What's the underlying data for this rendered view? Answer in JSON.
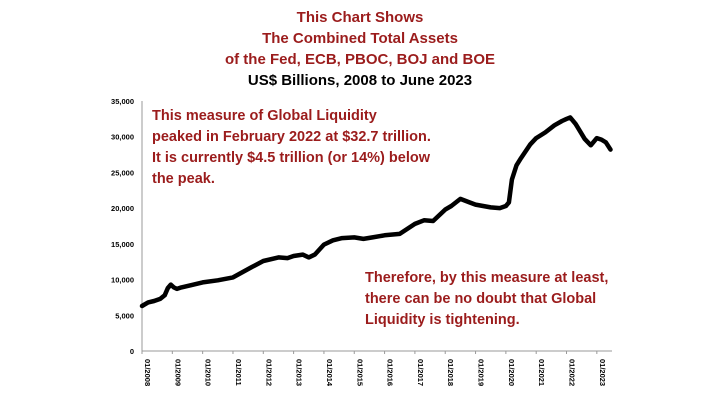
{
  "title_lines": [
    "This Chart Shows",
    "The Combined Total Assets",
    "of the Fed, ECB, PBOC, BOJ and BOE"
  ],
  "subtitle": "US$ Billions, 2008 to June 2023",
  "annotations": {
    "top_left": [
      "This measure of Global Liquidity",
      "peaked in February 2022 at $32.7 trillion.",
      "It is currently $4.5 trillion (or 14%) below",
      "the peak."
    ],
    "bottom_right": [
      "Therefore, by this measure at least,",
      "there can be no doubt that Global",
      "Liquidity is tightening."
    ]
  },
  "colors": {
    "title": "#9b1c1c",
    "annotation": "#9b1c1c",
    "line": "#000000"
  },
  "chart_data": {
    "type": "line",
    "ylim": [
      0,
      35000
    ],
    "yticks": [
      0,
      5000,
      10000,
      15000,
      20000,
      25000,
      30000,
      35000
    ],
    "ytick_labels": [
      "0",
      "5,000",
      "10,000",
      "15,000",
      "20,000",
      "25,000",
      "30,000",
      "35,000"
    ],
    "xtick_labels": [
      "01/2008",
      "01/2009",
      "01/2010",
      "01/2011",
      "01/2012",
      "01/2013",
      "01/2014",
      "01/2015",
      "01/2016",
      "01/2017",
      "01/2018",
      "01/2019",
      "01/2020",
      "01/2021",
      "01/2022",
      "01/2023"
    ],
    "xlim": [
      2008.0,
      2023.5
    ],
    "grid": false,
    "series": [
      {
        "x": [
          2008.0,
          2008.2,
          2008.4,
          2008.6,
          2008.75,
          2008.85,
          2008.95,
          2009.05,
          2009.15,
          2009.3,
          2009.6,
          2010.0,
          2010.5,
          2011.0,
          2011.3,
          2011.6,
          2012.0,
          2012.5,
          2012.8,
          2013.0,
          2013.3,
          2013.5,
          2013.7,
          2014.0,
          2014.3,
          2014.6,
          2015.0,
          2015.3,
          2015.6,
          2016.0,
          2016.5,
          2017.0,
          2017.3,
          2017.6,
          2018.0,
          2018.2,
          2018.5,
          2018.8,
          2019.0,
          2019.5,
          2019.8,
          2020.0,
          2020.1,
          2020.2,
          2020.35,
          2020.5,
          2020.8,
          2021.0,
          2021.3,
          2021.6,
          2021.85,
          2022.0,
          2022.12,
          2022.3,
          2022.6,
          2022.8,
          2023.0,
          2023.15,
          2023.3,
          2023.45
        ],
        "y": [
          6300,
          6800,
          7000,
          7300,
          7800,
          8800,
          9300,
          8900,
          8700,
          8900,
          9200,
          9600,
          9900,
          10300,
          11000,
          11700,
          12600,
          13100,
          13000,
          13300,
          13500,
          13100,
          13500,
          14900,
          15500,
          15800,
          15900,
          15700,
          15900,
          16200,
          16400,
          17800,
          18300,
          18200,
          19800,
          20300,
          21300,
          20800,
          20500,
          20100,
          20000,
          20300,
          20800,
          24000,
          26000,
          27000,
          28900,
          29800,
          30600,
          31600,
          32200,
          32500,
          32700,
          31800,
          29700,
          28800,
          29800,
          29600,
          29200,
          28200
        ]
      }
    ]
  }
}
